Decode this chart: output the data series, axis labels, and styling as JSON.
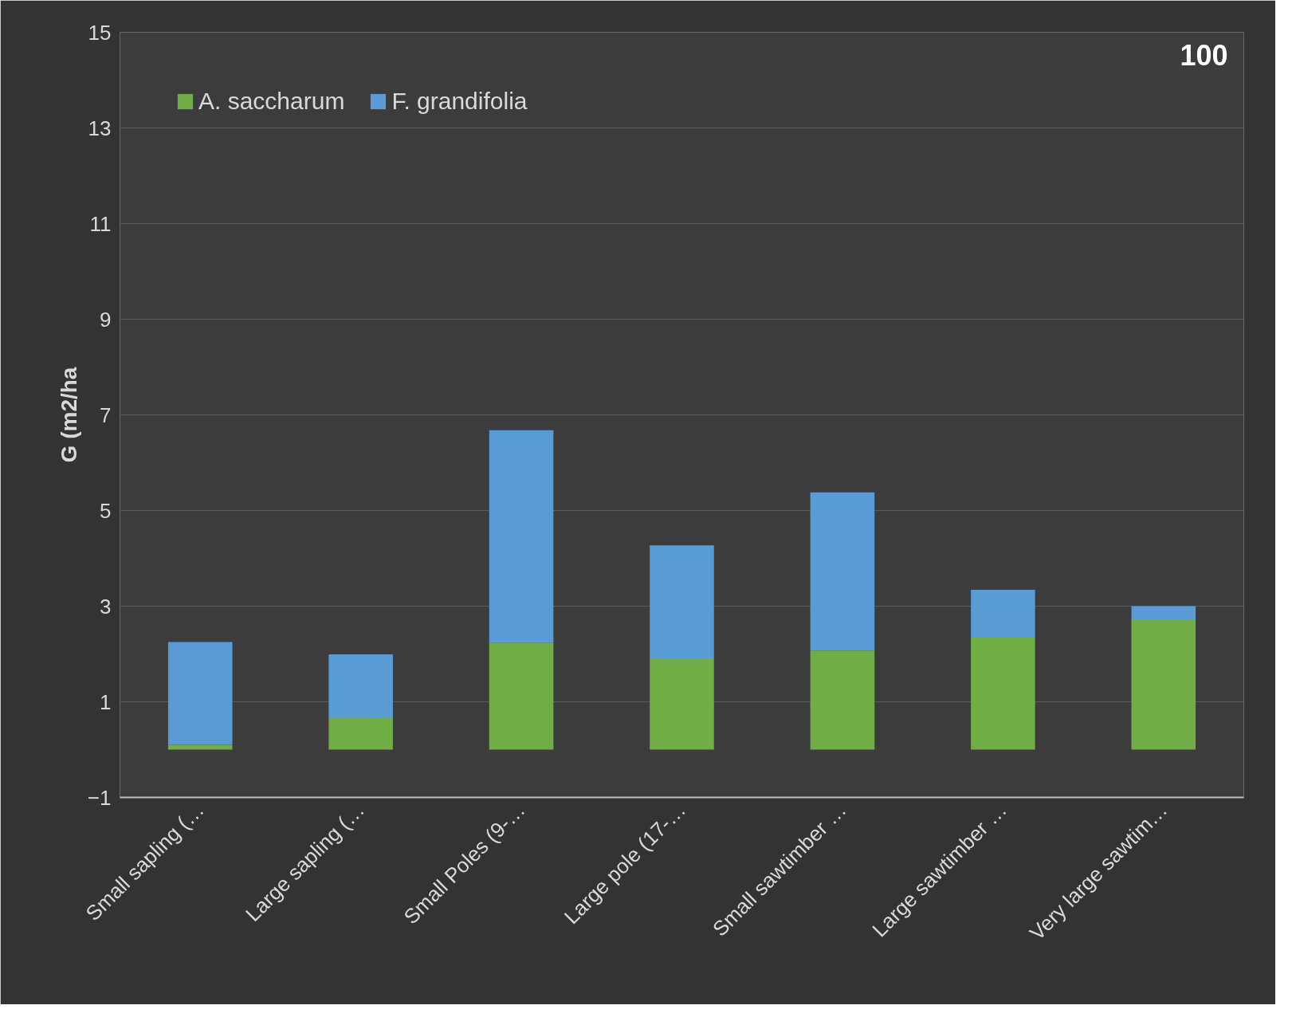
{
  "chart_data": {
    "type": "bar",
    "stacked": true,
    "ylabel": "G (m2/ha",
    "annotations": [
      "100"
    ],
    "categories": [
      "Small sapling (…",
      "Large sapling (…",
      "Small Poles (9-…",
      "Large pole (17-…",
      "Small sawtimber …",
      "Large sawtimber …",
      "Very large sawtim…"
    ],
    "series": [
      {
        "name": "A. saccharum",
        "color": "#70ad47",
        "values": [
          0.1,
          0.66,
          2.23,
          1.89,
          2.07,
          2.34,
          2.71
        ]
      },
      {
        "name": "F. grandifolia",
        "color": "#5b9bd5",
        "values": [
          2.15,
          1.33,
          4.45,
          2.38,
          3.31,
          1.0,
          0.29
        ]
      }
    ],
    "ylim": [
      -1,
      15
    ],
    "yticks": [
      -1,
      1,
      3,
      5,
      7,
      9,
      11,
      13,
      15
    ],
    "grid": "y",
    "legend": "top left"
  }
}
